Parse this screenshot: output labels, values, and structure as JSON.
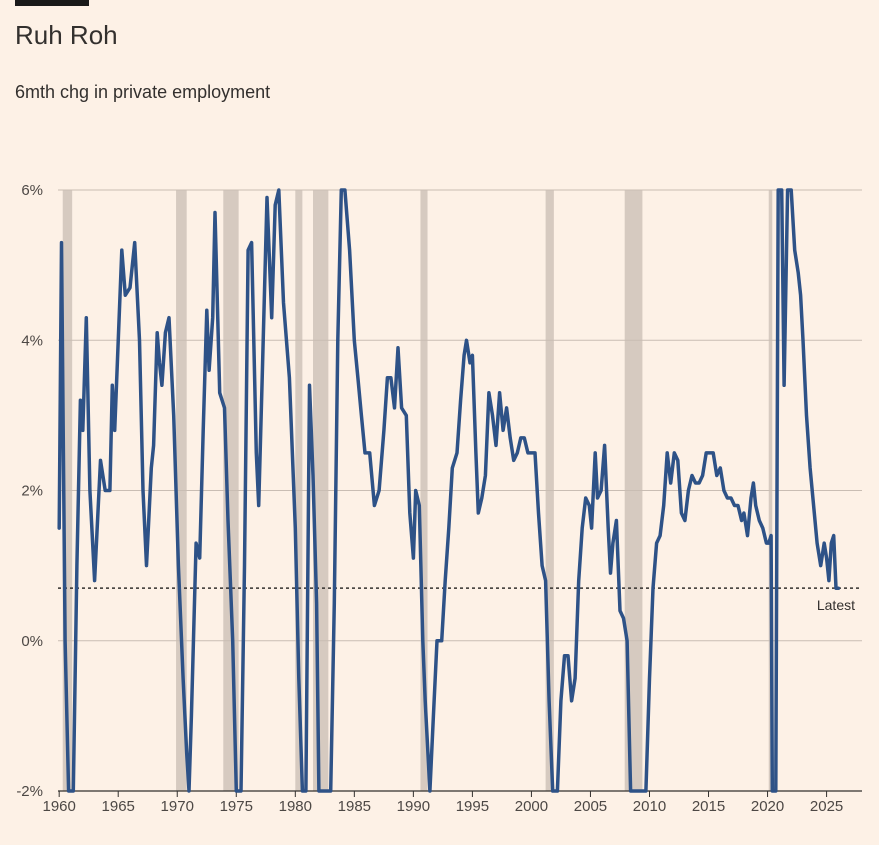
{
  "title": "Ruh Roh",
  "subtitle": "6mth chg in private employment",
  "chart_data": {
    "type": "line",
    "ylim": [
      -2,
      6
    ],
    "xlim": [
      1959.9,
      2028.0
    ],
    "yticks": [
      {
        "value": 6,
        "label": "6%"
      },
      {
        "value": 4,
        "label": "4%"
      },
      {
        "value": 2,
        "label": "2%"
      },
      {
        "value": 0,
        "label": "0%"
      },
      {
        "value": -2,
        "label": "-2%"
      }
    ],
    "xticks": [
      {
        "value": 1960,
        "label": "1960"
      },
      {
        "value": 1965,
        "label": "1965"
      },
      {
        "value": 1970,
        "label": "1970"
      },
      {
        "value": 1975,
        "label": "1975"
      },
      {
        "value": 1980,
        "label": "1980"
      },
      {
        "value": 1985,
        "label": "1985"
      },
      {
        "value": 1990,
        "label": "1990"
      },
      {
        "value": 1995,
        "label": "1995"
      },
      {
        "value": 2000,
        "label": "2000"
      },
      {
        "value": 2005,
        "label": "2005"
      },
      {
        "value": 2010,
        "label": "2010"
      },
      {
        "value": 2015,
        "label": "2015"
      },
      {
        "value": 2020,
        "label": "2020"
      },
      {
        "value": 2025,
        "label": "2025"
      }
    ],
    "grid": true,
    "recessions": [
      [
        1960.3,
        1961.1
      ],
      [
        1969.9,
        1970.8
      ],
      [
        1973.9,
        1975.2
      ],
      [
        1980.0,
        1980.6
      ],
      [
        1981.5,
        1982.8
      ],
      [
        1990.6,
        1991.2
      ],
      [
        2001.2,
        2001.9
      ],
      [
        2007.9,
        2009.4
      ],
      [
        2020.1,
        2020.4
      ]
    ],
    "latest": {
      "value": 0.7,
      "label": "Latest"
    },
    "series": [
      {
        "color": "#2e5287",
        "points": [
          [
            1960.0,
            1.5
          ],
          [
            1960.2,
            5.3
          ],
          [
            1960.5,
            0.0
          ],
          [
            1960.8,
            -2.0
          ],
          [
            1961.2,
            -2.0
          ],
          [
            1961.5,
            1.0
          ],
          [
            1961.8,
            3.2
          ],
          [
            1962.0,
            2.8
          ],
          [
            1962.3,
            4.3
          ],
          [
            1962.6,
            2.0
          ],
          [
            1963.0,
            0.8
          ],
          [
            1963.5,
            2.4
          ],
          [
            1963.9,
            2.0
          ],
          [
            1964.3,
            2.0
          ],
          [
            1964.5,
            3.4
          ],
          [
            1964.7,
            2.8
          ],
          [
            1965.3,
            5.2
          ],
          [
            1965.6,
            4.6
          ],
          [
            1966.0,
            4.7
          ],
          [
            1966.4,
            5.3
          ],
          [
            1966.8,
            4.0
          ],
          [
            1967.1,
            2.0
          ],
          [
            1967.4,
            1.0
          ],
          [
            1967.8,
            2.3
          ],
          [
            1968.0,
            2.6
          ],
          [
            1968.3,
            4.1
          ],
          [
            1968.5,
            3.7
          ],
          [
            1968.7,
            3.4
          ],
          [
            1969.0,
            4.1
          ],
          [
            1969.3,
            4.3
          ],
          [
            1969.7,
            3.0
          ],
          [
            1970.1,
            1.0
          ],
          [
            1970.5,
            -0.5
          ],
          [
            1970.8,
            -1.5
          ],
          [
            1971.0,
            -2.0
          ],
          [
            1971.2,
            -1.0
          ],
          [
            1971.6,
            1.3
          ],
          [
            1971.9,
            1.1
          ],
          [
            1972.2,
            2.8
          ],
          [
            1972.5,
            4.4
          ],
          [
            1972.7,
            3.6
          ],
          [
            1973.0,
            4.3
          ],
          [
            1973.2,
            5.7
          ],
          [
            1973.6,
            3.3
          ],
          [
            1974.0,
            3.1
          ],
          [
            1974.3,
            1.6
          ],
          [
            1974.7,
            0.0
          ],
          [
            1975.0,
            -2.0
          ],
          [
            1975.4,
            -2.0
          ],
          [
            1975.7,
            1.0
          ],
          [
            1976.0,
            5.2
          ],
          [
            1976.3,
            5.3
          ],
          [
            1976.7,
            2.5
          ],
          [
            1976.9,
            1.8
          ],
          [
            1977.2,
            3.5
          ],
          [
            1977.6,
            5.9
          ],
          [
            1978.0,
            4.3
          ],
          [
            1978.3,
            5.8
          ],
          [
            1978.6,
            6.0
          ],
          [
            1979.0,
            4.5
          ],
          [
            1979.5,
            3.5
          ],
          [
            1980.0,
            1.5
          ],
          [
            1980.3,
            -0.5
          ],
          [
            1980.6,
            -2.0
          ],
          [
            1980.9,
            -2.0
          ],
          [
            1981.2,
            3.4
          ],
          [
            1981.5,
            2.2
          ],
          [
            1981.8,
            0.5
          ],
          [
            1982.0,
            -2.0
          ],
          [
            1983.0,
            -2.0
          ],
          [
            1983.3,
            0.5
          ],
          [
            1983.6,
            4.0
          ],
          [
            1983.9,
            6.0
          ],
          [
            1984.2,
            6.0
          ],
          [
            1984.6,
            5.2
          ],
          [
            1985.0,
            4.0
          ],
          [
            1985.3,
            3.5
          ],
          [
            1985.6,
            3.0
          ],
          [
            1985.9,
            2.5
          ],
          [
            1986.3,
            2.5
          ],
          [
            1986.7,
            1.8
          ],
          [
            1987.1,
            2.0
          ],
          [
            1987.5,
            2.8
          ],
          [
            1987.8,
            3.5
          ],
          [
            1988.1,
            3.5
          ],
          [
            1988.4,
            3.1
          ],
          [
            1988.7,
            3.9
          ],
          [
            1989.0,
            3.1
          ],
          [
            1989.4,
            3.0
          ],
          [
            1989.7,
            1.7
          ],
          [
            1990.0,
            1.1
          ],
          [
            1990.2,
            2.0
          ],
          [
            1990.5,
            1.8
          ],
          [
            1990.8,
            0.0
          ],
          [
            1991.0,
            -0.8
          ],
          [
            1991.4,
            -2.0
          ],
          [
            1991.7,
            -1.0
          ],
          [
            1992.0,
            0.0
          ],
          [
            1992.4,
            0.0
          ],
          [
            1992.7,
            0.8
          ],
          [
            1993.0,
            1.5
          ],
          [
            1993.3,
            2.3
          ],
          [
            1993.7,
            2.5
          ],
          [
            1994.0,
            3.2
          ],
          [
            1994.3,
            3.8
          ],
          [
            1994.5,
            4.0
          ],
          [
            1994.8,
            3.7
          ],
          [
            1995.0,
            3.8
          ],
          [
            1995.3,
            2.5
          ],
          [
            1995.5,
            1.7
          ],
          [
            1995.8,
            1.9
          ],
          [
            1996.1,
            2.2
          ],
          [
            1996.4,
            3.3
          ],
          [
            1996.7,
            3.0
          ],
          [
            1997.0,
            2.6
          ],
          [
            1997.3,
            3.3
          ],
          [
            1997.6,
            2.8
          ],
          [
            1997.9,
            3.1
          ],
          [
            1998.2,
            2.7
          ],
          [
            1998.5,
            2.4
          ],
          [
            1998.8,
            2.5
          ],
          [
            1999.1,
            2.7
          ],
          [
            1999.4,
            2.7
          ],
          [
            1999.7,
            2.5
          ],
          [
            2000.0,
            2.5
          ],
          [
            2000.3,
            2.5
          ],
          [
            2000.6,
            1.7
          ],
          [
            2000.9,
            1.0
          ],
          [
            2001.2,
            0.8
          ],
          [
            2001.5,
            -0.8
          ],
          [
            2001.8,
            -2.0
          ],
          [
            2002.2,
            -2.0
          ],
          [
            2002.5,
            -0.8
          ],
          [
            2002.8,
            -0.2
          ],
          [
            2003.1,
            -0.2
          ],
          [
            2003.4,
            -0.8
          ],
          [
            2003.7,
            -0.5
          ],
          [
            2004.0,
            0.8
          ],
          [
            2004.3,
            1.5
          ],
          [
            2004.6,
            1.9
          ],
          [
            2004.9,
            1.8
          ],
          [
            2005.1,
            1.5
          ],
          [
            2005.4,
            2.5
          ],
          [
            2005.6,
            1.9
          ],
          [
            2005.9,
            2.0
          ],
          [
            2006.2,
            2.6
          ],
          [
            2006.5,
            1.5
          ],
          [
            2006.7,
            0.9
          ],
          [
            2006.9,
            1.3
          ],
          [
            2007.2,
            1.6
          ],
          [
            2007.5,
            0.4
          ],
          [
            2007.8,
            0.3
          ],
          [
            2008.1,
            0.0
          ],
          [
            2008.4,
            -2.0
          ],
          [
            2009.7,
            -2.0
          ],
          [
            2010.0,
            -0.5
          ],
          [
            2010.3,
            0.7
          ],
          [
            2010.6,
            1.3
          ],
          [
            2010.9,
            1.4
          ],
          [
            2011.2,
            1.8
          ],
          [
            2011.5,
            2.5
          ],
          [
            2011.8,
            2.1
          ],
          [
            2012.1,
            2.5
          ],
          [
            2012.4,
            2.4
          ],
          [
            2012.7,
            1.7
          ],
          [
            2013.0,
            1.6
          ],
          [
            2013.3,
            2.0
          ],
          [
            2013.6,
            2.2
          ],
          [
            2013.9,
            2.1
          ],
          [
            2014.2,
            2.1
          ],
          [
            2014.5,
            2.2
          ],
          [
            2014.8,
            2.5
          ],
          [
            2015.1,
            2.5
          ],
          [
            2015.4,
            2.5
          ],
          [
            2015.7,
            2.2
          ],
          [
            2016.0,
            2.3
          ],
          [
            2016.3,
            2.0
          ],
          [
            2016.6,
            1.9
          ],
          [
            2016.9,
            1.9
          ],
          [
            2017.2,
            1.8
          ],
          [
            2017.5,
            1.8
          ],
          [
            2017.8,
            1.6
          ],
          [
            2018.0,
            1.7
          ],
          [
            2018.3,
            1.4
          ],
          [
            2018.6,
            1.9
          ],
          [
            2018.8,
            2.1
          ],
          [
            2019.0,
            1.8
          ],
          [
            2019.3,
            1.6
          ],
          [
            2019.6,
            1.5
          ],
          [
            2019.9,
            1.3
          ],
          [
            2020.1,
            1.3
          ],
          [
            2020.3,
            1.4
          ],
          [
            2020.4,
            -2.0
          ],
          [
            2020.7,
            -2.0
          ],
          [
            2020.9,
            6.0
          ],
          [
            2021.2,
            6.0
          ],
          [
            2021.4,
            3.4
          ],
          [
            2021.7,
            6.0
          ],
          [
            2022.0,
            6.0
          ],
          [
            2022.3,
            5.2
          ],
          [
            2022.6,
            4.9
          ],
          [
            2022.8,
            4.6
          ],
          [
            2023.0,
            4.0
          ],
          [
            2023.3,
            3.0
          ],
          [
            2023.6,
            2.3
          ],
          [
            2023.9,
            1.8
          ],
          [
            2024.2,
            1.3
          ],
          [
            2024.5,
            1.0
          ],
          [
            2024.8,
            1.3
          ],
          [
            2025.0,
            1.1
          ],
          [
            2025.2,
            0.8
          ],
          [
            2025.4,
            1.3
          ],
          [
            2025.6,
            1.4
          ],
          [
            2025.8,
            0.7
          ],
          [
            2026.0,
            0.7
          ]
        ]
      }
    ]
  }
}
